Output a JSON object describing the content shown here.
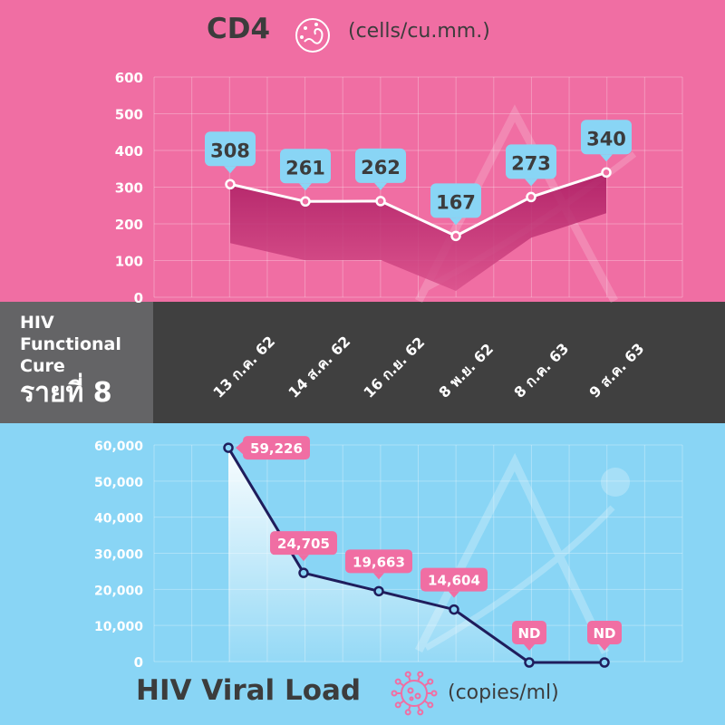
{
  "side_panel": {
    "line1": "HIV",
    "line2": "Functional",
    "line3": "Cure",
    "line4": "รายที่ 8"
  },
  "colors": {
    "top_bg": "#f06ea3",
    "bottom_bg": "#89d5f5",
    "band_dark": "#404040",
    "band_side": "#646466",
    "cd4_callout": "#89d5f5",
    "vl_callout": "#f06ea3",
    "vl_line": "#1f1d5c"
  },
  "icons": {
    "cd4": "cell-icon",
    "viral_load": "virus-icon"
  },
  "chart_data": [
    {
      "type": "line",
      "title": "CD4",
      "unit_label": "(cells/cu.mm.)",
      "categories": [
        "13 ก.ค. 62",
        "14 ส.ค. 62",
        "16 ก.ย. 62",
        "8 พ.ย. 62",
        "8 ก.ค. 63",
        "9 ส.ค. 63"
      ],
      "values": [
        308,
        261,
        262,
        167,
        273,
        340
      ],
      "data_labels": [
        "308",
        "261",
        "262",
        "167",
        "273",
        "340"
      ],
      "yticks": [
        "0",
        "100",
        "200",
        "300",
        "400",
        "500",
        "600"
      ],
      "ylim": [
        0,
        600
      ],
      "grid": true
    },
    {
      "type": "line",
      "title": "HIV Viral Load",
      "unit_label": "(copies/ml)",
      "categories": [
        "13 ก.ค. 62",
        "14 ส.ค. 62",
        "16 ก.ย. 62",
        "8 พ.ย. 62",
        "8 ก.ค. 63",
        "9 ส.ค. 63"
      ],
      "values": [
        59226,
        24705,
        19663,
        14604,
        0,
        0
      ],
      "data_labels": [
        "59,226",
        "24,705",
        "19,663",
        "14,604",
        "ND",
        "ND"
      ],
      "yticks": [
        "0",
        "10,000",
        "20,000",
        "30,000",
        "40,000",
        "50,000",
        "60,000"
      ],
      "ylim": [
        0,
        60000
      ],
      "grid": true
    }
  ]
}
